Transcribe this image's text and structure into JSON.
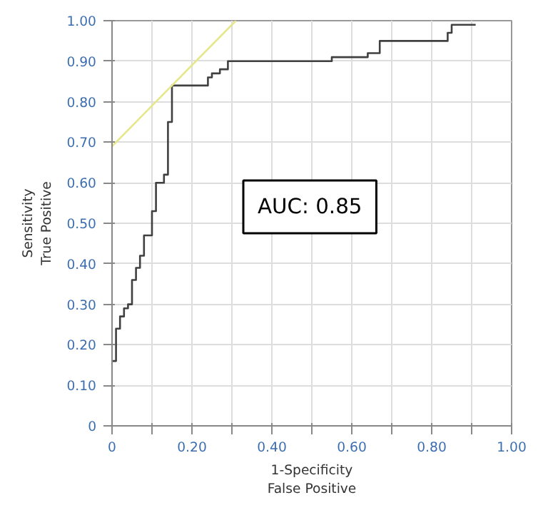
{
  "chart_data": {
    "type": "step",
    "xlabel": "1-Specificity\nFalse Positive",
    "ylabel": "Sensitivity\nTrue Positive",
    "series": [
      {
        "color": "#404040",
        "x": [
          0,
          0.01,
          0.02,
          0.03,
          0.04,
          0.05,
          0.06,
          0.07,
          0.08,
          0.1,
          0.11,
          0.13,
          0.14,
          0.15,
          0.24,
          0.25,
          0.27,
          0.29,
          0.55,
          0.64,
          0.67,
          0.84,
          0.85,
          0.91
        ],
        "values": [
          0.16,
          0.24,
          0.27,
          0.29,
          0.3,
          0.36,
          0.39,
          0.42,
          0.47,
          0.53,
          0.6,
          0.62,
          0.75,
          0.84,
          0.86,
          0.87,
          0.88,
          0.9,
          0.91,
          0.92,
          0.95,
          0.97,
          0.99,
          0.99
        ]
      },
      {
        "type": "line",
        "color": "#e6e68a",
        "x": [
          0,
          0.31
        ],
        "values": [
          0.69,
          1.0
        ]
      }
    ],
    "annotations": [
      "AUC: 0.85"
    ],
    "xlim": [
      0,
      1
    ],
    "ylim": [
      0,
      1
    ],
    "xticks": [
      {
        "value": 0,
        "label": "0"
      },
      {
        "value": 0.1,
        "label": null
      },
      {
        "value": 0.2,
        "label": "0.20"
      },
      {
        "value": 0.3,
        "label": null
      },
      {
        "value": 0.4,
        "label": "0.40"
      },
      {
        "value": 0.5,
        "label": null
      },
      {
        "value": 0.6,
        "label": "0.60"
      },
      {
        "value": 0.7,
        "label": null
      },
      {
        "value": 0.8,
        "label": "0.80"
      },
      {
        "value": 0.9,
        "label": null
      },
      {
        "value": 1,
        "label": "1.00"
      }
    ],
    "yticks": [
      {
        "value": 0,
        "label": "0"
      },
      {
        "value": 0.1,
        "label": "0.10"
      },
      {
        "value": 0.2,
        "label": "0.20"
      },
      {
        "value": 0.3,
        "label": "0.30"
      },
      {
        "value": 0.4,
        "label": "0.40"
      },
      {
        "value": 0.5,
        "label": "0.50"
      },
      {
        "value": 0.6,
        "label": "0.60"
      },
      {
        "value": 0.7,
        "label": "0.70"
      },
      {
        "value": 0.8,
        "label": "0.80"
      },
      {
        "value": 0.9,
        "label": "0.90"
      },
      {
        "value": 1,
        "label": "1.00"
      }
    ],
    "grid": true
  }
}
